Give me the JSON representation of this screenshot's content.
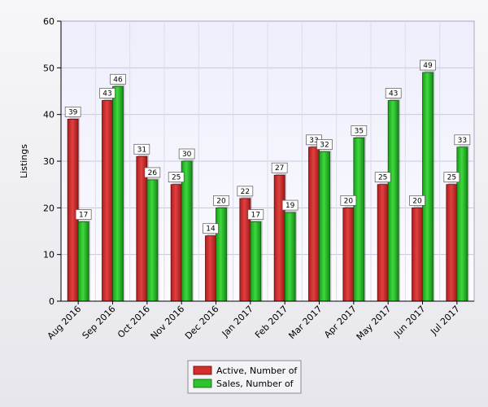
{
  "chart_data": {
    "type": "bar",
    "title": "",
    "xlabel": "",
    "ylabel": "Listings",
    "ylim": [
      0,
      60
    ],
    "yticks": [
      0,
      10,
      20,
      30,
      40,
      50,
      60
    ],
    "grid": true,
    "legend_position": "bottom",
    "categories": [
      "Aug 2016",
      "Sep 2016",
      "Oct 2016",
      "Nov 2016",
      "Dec 2016",
      "Jan 2017",
      "Feb 2017",
      "Mar 2017",
      "Apr 2017",
      "May 2017",
      "Jun 2017",
      "Jul 2017"
    ],
    "series": [
      {
        "name": "Active, Number of",
        "color": "#d42f2f",
        "values": [
          39,
          43,
          31,
          25,
          14,
          22,
          27,
          33,
          20,
          25,
          20,
          25
        ]
      },
      {
        "name": "Sales, Number of",
        "color": "#2ec42e",
        "values": [
          17,
          46,
          26,
          30,
          20,
          17,
          19,
          32,
          35,
          43,
          49,
          33
        ]
      }
    ]
  }
}
